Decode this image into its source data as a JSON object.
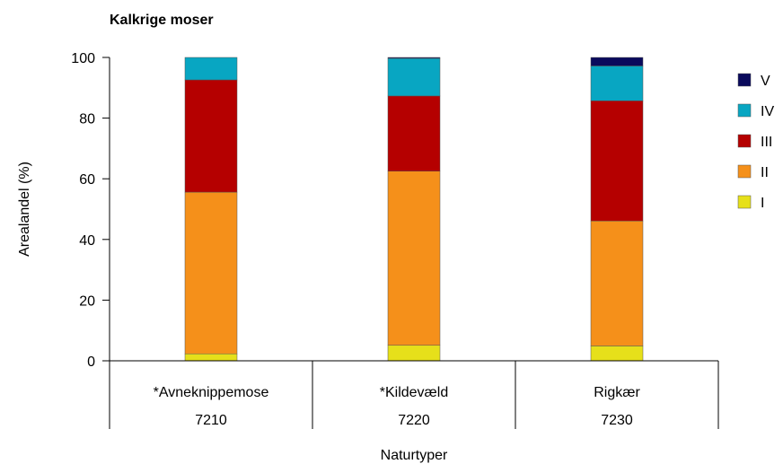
{
  "chart_data": {
    "type": "bar",
    "stacked": true,
    "title": "Kalkrige moser",
    "xlabel": "Naturtyper",
    "ylabel": "Arealandel (%)",
    "ylim": [
      0,
      100
    ],
    "yticks": [
      0,
      20,
      40,
      60,
      80,
      100
    ],
    "categories": [
      {
        "name": "*Avneknippemose",
        "code": "7210"
      },
      {
        "name": "*Kildevæld",
        "code": "7220"
      },
      {
        "name": "Rigkær",
        "code": "7230"
      }
    ],
    "series": [
      {
        "name": "I",
        "color": "#e6e01a",
        "values": [
          2.3,
          5.1,
          4.9
        ]
      },
      {
        "name": "II",
        "color": "#f5901a",
        "values": [
          53.3,
          57.4,
          41.2
        ]
      },
      {
        "name": "III",
        "color": "#b50000",
        "values": [
          37.0,
          24.8,
          39.6
        ]
      },
      {
        "name": "IV",
        "color": "#08a6c2",
        "values": [
          7.4,
          12.4,
          11.5
        ]
      },
      {
        "name": "V",
        "color": "#0a0a5c",
        "values": [
          0.0,
          0.3,
          2.8
        ]
      }
    ],
    "legend_order": [
      "V",
      "IV",
      "III",
      "II",
      "I"
    ],
    "legend_position": "right",
    "grid": false
  }
}
